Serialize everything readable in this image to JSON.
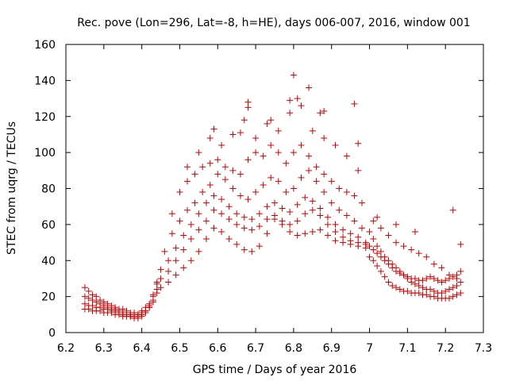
{
  "chart_data": {
    "type": "scatter",
    "title": "Rec. pove (Lon=296, Lat=-8, h=HE), days 006-007, 2016, window 001",
    "xlabel": "GPS time / Days of year 2016",
    "ylabel": "STEC from uqrg / TECUs",
    "xlim": [
      6.2,
      7.3
    ],
    "ylim": [
      0,
      160
    ],
    "xticks": [
      "6.2",
      "6.3",
      "6.4",
      "6.5",
      "6.6",
      "6.7",
      "6.8",
      "6.9",
      "7",
      "7.1",
      "7.2",
      "7.3"
    ],
    "yticks": [
      "0",
      "20",
      "40",
      "60",
      "80",
      "100",
      "120",
      "140",
      "160"
    ],
    "grid": false,
    "legend": "none",
    "marker": "plus",
    "color": "#cc0000",
    "series": [
      {
        "x": [
          6.25,
          6.26,
          6.27,
          6.28,
          6.29,
          6.3,
          6.31,
          6.32,
          6.33,
          6.34,
          6.35,
          6.36,
          6.37,
          6.38,
          6.39,
          6.4,
          6.41,
          6.42,
          6.43,
          6.44,
          6.25,
          6.26,
          6.27,
          6.28,
          6.29,
          6.3,
          6.31,
          6.32,
          6.33,
          6.34,
          6.35,
          6.36,
          6.37,
          6.38,
          6.39,
          6.4,
          6.41,
          6.42,
          6.43,
          6.44,
          6.25,
          6.26,
          6.27,
          6.28,
          6.29,
          6.3,
          6.31,
          6.32,
          6.33,
          6.34,
          6.35,
          6.36,
          6.37,
          6.38,
          6.39,
          6.4,
          6.41,
          6.42,
          6.43,
          6.44,
          6.25,
          6.26,
          6.27,
          6.28,
          6.29,
          6.3,
          6.31,
          6.32,
          6.33,
          6.34,
          6.35,
          6.36,
          6.37,
          6.38,
          6.39,
          6.4,
          6.41,
          6.42,
          6.43,
          6.44
        ],
        "y": [
          25,
          23,
          21,
          20,
          18,
          17,
          16,
          15,
          14,
          13,
          13,
          12,
          11,
          11,
          10,
          11,
          12,
          14,
          17,
          22,
          20,
          19,
          18,
          17,
          16,
          15,
          14,
          13,
          13,
          12,
          11,
          11,
          10,
          10,
          10,
          12,
          14,
          16,
          18,
          24,
          16,
          15,
          15,
          14,
          14,
          13,
          13,
          12,
          12,
          11,
          10,
          10,
          9,
          9,
          9,
          10,
          12,
          15,
          20,
          27,
          13,
          13,
          12,
          12,
          12,
          11,
          11,
          11,
          10,
          10,
          9,
          9,
          9,
          8,
          8,
          9,
          11,
          14,
          21,
          28
        ]
      },
      {
        "x": [
          6.45,
          6.47,
          6.49,
          6.51,
          6.53,
          6.55,
          6.57,
          6.59,
          6.61,
          6.63,
          6.65,
          6.67,
          6.69,
          6.71,
          6.73,
          6.75,
          6.77,
          6.79,
          6.81,
          6.83,
          6.85,
          6.87,
          6.89,
          6.91,
          6.93,
          6.95,
          6.97,
          6.99
        ],
        "y": [
          25,
          28,
          32,
          36,
          40,
          45,
          52,
          58,
          56,
          52,
          49,
          46,
          45,
          48,
          55,
          63,
          60,
          56,
          54,
          55,
          56,
          57,
          54,
          51,
          50,
          49,
          48,
          47
        ]
      },
      {
        "x": [
          6.45,
          6.47,
          6.49,
          6.51,
          6.53,
          6.55,
          6.57,
          6.59,
          6.61,
          6.63,
          6.65,
          6.67,
          6.69,
          6.71,
          6.73,
          6.75,
          6.77,
          6.79,
          6.81,
          6.83,
          6.85,
          6.87,
          6.89,
          6.91,
          6.93,
          6.95,
          6.97,
          6.99
        ],
        "y": [
          30,
          34,
          40,
          46,
          52,
          57,
          62,
          68,
          66,
          63,
          60,
          58,
          57,
          59,
          63,
          65,
          62,
          60,
          62,
          66,
          68,
          65,
          60,
          56,
          53,
          51,
          50,
          49
        ]
      },
      {
        "x": [
          6.45,
          6.47,
          6.49,
          6.51,
          6.53,
          6.55,
          6.57,
          6.59,
          6.61,
          6.63,
          6.65,
          6.67,
          6.69,
          6.71,
          6.73,
          6.75,
          6.77,
          6.79,
          6.81,
          6.83,
          6.85,
          6.87,
          6.89,
          6.91,
          6.93,
          6.95,
          6.97,
          6.99
        ],
        "y": [
          35,
          40,
          47,
          54,
          60,
          66,
          72,
          76,
          74,
          70,
          66,
          64,
          63,
          66,
          70,
          72,
          69,
          67,
          71,
          75,
          73,
          69,
          64,
          60,
          57,
          55,
          53,
          50
        ]
      },
      {
        "x": [
          6.46,
          6.48,
          6.5,
          6.52,
          6.54,
          6.56,
          6.58,
          6.6,
          6.62,
          6.64,
          6.66,
          6.68,
          6.7,
          6.72,
          6.74,
          6.76,
          6.78,
          6.8,
          6.82,
          6.84,
          6.86,
          6.88,
          6.9,
          6.92,
          6.94,
          6.96,
          6.98
        ],
        "y": [
          45,
          55,
          62,
          68,
          72,
          78,
          82,
          88,
          85,
          80,
          76,
          74,
          78,
          82,
          86,
          84,
          78,
          80,
          86,
          90,
          84,
          78,
          72,
          68,
          65,
          62,
          58
        ]
      },
      {
        "x": [
          6.48,
          6.5,
          6.52,
          6.54,
          6.56,
          6.58,
          6.6,
          6.62,
          6.64,
          6.66,
          6.68,
          6.7,
          6.72,
          6.74,
          6.76,
          6.78,
          6.8,
          6.82,
          6.84,
          6.86,
          6.88,
          6.9,
          6.92,
          6.94,
          6.96,
          6.98
        ],
        "y": [
          66,
          78,
          84,
          88,
          92,
          94,
          96,
          92,
          90,
          88,
          96,
          100,
          98,
          104,
          100,
          94,
          100,
          104,
          98,
          92,
          88,
          84,
          80,
          78,
          76,
          72
        ]
      },
      {
        "x": [
          6.52,
          6.55,
          6.58,
          6.61,
          6.64,
          6.67,
          6.7,
          6.73,
          6.76,
          6.79,
          6.82,
          6.85,
          6.88,
          6.91,
          6.94,
          6.97
        ],
        "y": [
          92,
          100,
          108,
          104,
          110,
          118,
          108,
          116,
          112,
          122,
          126,
          112,
          108,
          104,
          98,
          90
        ]
      },
      {
        "x": [
          6.59,
          6.66,
          6.68,
          6.68,
          6.74,
          6.79,
          6.8,
          6.81,
          6.84,
          6.87,
          6.88,
          6.96,
          6.97
        ],
        "y": [
          113,
          111,
          128,
          125,
          118,
          129,
          143,
          130,
          136,
          122,
          123,
          127,
          105
        ]
      },
      {
        "x": [
          7.0,
          7.01,
          7.02,
          7.03,
          7.04,
          7.05,
          7.06,
          7.07,
          7.08,
          7.09,
          7.1,
          7.11,
          7.12,
          7.13,
          7.14,
          7.15,
          7.16,
          7.17,
          7.18,
          7.19,
          7.2,
          7.21,
          7.22,
          7.23,
          7.24,
          7.0,
          7.01,
          7.02,
          7.03,
          7.04,
          7.05,
          7.06,
          7.07,
          7.08,
          7.09,
          7.1,
          7.11,
          7.12,
          7.13,
          7.14,
          7.15,
          7.16,
          7.17,
          7.18,
          7.19,
          7.2,
          7.21,
          7.22,
          7.23,
          7.24,
          7.0,
          7.01,
          7.02,
          7.03,
          7.04,
          7.05,
          7.06,
          7.07,
          7.08,
          7.09,
          7.1,
          7.11,
          7.12,
          7.13,
          7.14,
          7.15,
          7.16,
          7.17,
          7.18,
          7.19,
          7.2,
          7.21,
          7.22,
          7.23,
          7.24,
          7.01,
          7.03,
          7.05,
          7.07,
          7.09,
          7.11,
          7.13,
          7.15,
          7.17,
          7.19,
          7.21,
          7.23,
          7.02,
          7.07,
          7.12,
          7.22,
          7.24
        ],
        "y": [
          48,
          46,
          44,
          42,
          40,
          38,
          36,
          34,
          33,
          32,
          31,
          30,
          30,
          29,
          29,
          30,
          31,
          30,
          29,
          28,
          29,
          30,
          31,
          32,
          34,
          42,
          40,
          37,
          34,
          31,
          28,
          26,
          25,
          24,
          23,
          23,
          22,
          22,
          22,
          21,
          21,
          20,
          20,
          19,
          19,
          19,
          19,
          20,
          21,
          22,
          56,
          52,
          48,
          45,
          42,
          40,
          38,
          36,
          34,
          32,
          30,
          28,
          27,
          26,
          25,
          24,
          24,
          23,
          22,
          22,
          23,
          24,
          25,
          26,
          28,
          62,
          58,
          54,
          50,
          48,
          46,
          44,
          42,
          38,
          36,
          32,
          30,
          64,
          60,
          56,
          68,
          49
        ]
      }
    ]
  }
}
